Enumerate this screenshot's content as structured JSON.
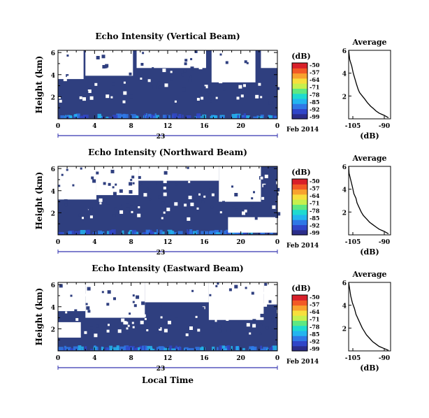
{
  "figure": {
    "date_label": "Feb 2014",
    "day_label": "23",
    "xlabel": "Local Time"
  },
  "colors": {
    "background_fill": "#2f3f7f",
    "colormap": [
      "#2b2d8a",
      "#3046c8",
      "#2f78e6",
      "#23b5ef",
      "#1fdad0",
      "#5ee882",
      "#c6f04e",
      "#f7df3c",
      "#f8a22e",
      "#f25a26",
      "#d8202a"
    ]
  },
  "chart_data": [
    {
      "type": "heatmap",
      "title": "Echo Intensity (Vertical Beam)",
      "ylabel": "Height (km)",
      "x_ticks": [
        "0",
        "4",
        "8",
        "12",
        "16",
        "20",
        "0"
      ],
      "y_ticks": [
        "2",
        "4",
        "6"
      ],
      "xlim": [
        0,
        24
      ],
      "ylim": [
        0,
        6.2
      ],
      "colorbar": {
        "label": "(dB)",
        "ticks": [
          "-50",
          "-57",
          "-64",
          "-71",
          "-78",
          "-85",
          "-92",
          "-99"
        ]
      },
      "white_patches": [
        {
          "x": [
            0,
            2.8
          ],
          "y": [
            3.6,
            6.2
          ]
        },
        {
          "x": [
            3,
            8.2
          ],
          "y": [
            3.9,
            6.2
          ]
        },
        {
          "x": [
            8.6,
            16.2
          ],
          "y": [
            4.6,
            6.2
          ]
        },
        {
          "x": [
            16.8,
            21.6
          ],
          "y": [
            3.3,
            6.2
          ]
        },
        {
          "x": [
            22.2,
            24
          ],
          "y": [
            4.6,
            6.2
          ]
        }
      ],
      "noise_density": 0.12,
      "average_profile": {
        "title": "Average",
        "xlabel": "(dB)",
        "x_ticks": [
          "-105",
          "-90"
        ],
        "y_ticks": [
          "2",
          "4",
          "6"
        ],
        "xlim": [
          -107,
          -87
        ],
        "ylim": [
          0,
          6
        ],
        "x": [
          -107,
          -106.5,
          -105.5,
          -104.8,
          -104,
          -103.2,
          -102.5,
          -101.8,
          -100.5,
          -99.2,
          -98,
          -96.5,
          -95.2,
          -94,
          -92.5,
          -90,
          -88
        ],
        "y": [
          6,
          5.2,
          4.6,
          4.0,
          3.5,
          3.0,
          2.6,
          2.3,
          2.0,
          1.7,
          1.4,
          1.1,
          0.9,
          0.7,
          0.5,
          0.3,
          0.1
        ]
      }
    },
    {
      "type": "heatmap",
      "title": "Echo Intensity (Northward Beam)",
      "ylabel": "Height (km)",
      "x_ticks": [
        "0",
        "4",
        "8",
        "12",
        "16",
        "20",
        "0"
      ],
      "y_ticks": [
        "2",
        "4",
        "6"
      ],
      "xlim": [
        0,
        24
      ],
      "ylim": [
        0,
        6.2
      ],
      "colorbar": {
        "label": "(dB)",
        "ticks": [
          "-50",
          "-57",
          "-64",
          "-71",
          "-78",
          "-85",
          "-92",
          "-99"
        ]
      },
      "white_patches": [
        {
          "x": [
            0,
            4.2
          ],
          "y": [
            3.2,
            6.2
          ]
        },
        {
          "x": [
            4.2,
            8.8
          ],
          "y": [
            3.6,
            6.2
          ]
        },
        {
          "x": [
            8.8,
            17.6
          ],
          "y": [
            4.9,
            6.2
          ]
        },
        {
          "x": [
            17.6,
            22.2
          ],
          "y": [
            3.0,
            6.2
          ]
        },
        {
          "x": [
            18.6,
            24
          ],
          "y": [
            0.2,
            1.6
          ]
        }
      ],
      "noise_density": 0.14,
      "average_profile": {
        "title": "Average",
        "xlabel": "(dB)",
        "x_ticks": [
          "-105",
          "-90"
        ],
        "y_ticks": [
          "2",
          "4",
          "6"
        ],
        "xlim": [
          -107,
          -87
        ],
        "ylim": [
          0,
          6
        ],
        "x": [
          -107,
          -106.8,
          -106,
          -105.2,
          -104.5,
          -103.5,
          -103,
          -102,
          -101,
          -100,
          -98.5,
          -97,
          -95.5,
          -94,
          -92.5,
          -90,
          -88
        ],
        "y": [
          6,
          5.4,
          4.8,
          4.2,
          3.6,
          3.2,
          2.8,
          2.4,
          2.0,
          1.7,
          1.4,
          1.1,
          0.9,
          0.7,
          0.5,
          0.3,
          0.1
        ]
      }
    },
    {
      "type": "heatmap",
      "title": "Echo Intensity (Eastward Beam)",
      "ylabel": "Height (km)",
      "x_ticks": [
        "0",
        "4",
        "8",
        "12",
        "16",
        "20",
        "0"
      ],
      "y_ticks": [
        "2",
        "4",
        "6"
      ],
      "xlim": [
        0,
        24
      ],
      "ylim": [
        0,
        6.2
      ],
      "colorbar": {
        "label": "(dB)",
        "ticks": [
          "-50",
          "-57",
          "-64",
          "-71",
          "-78",
          "-85",
          "-92",
          "-99"
        ]
      },
      "white_patches": [
        {
          "x": [
            0,
            3
          ],
          "y": [
            3.6,
            6.2
          ]
        },
        {
          "x": [
            3,
            9.5
          ],
          "y": [
            3.0,
            6.2
          ]
        },
        {
          "x": [
            9.5,
            16.5
          ],
          "y": [
            4.4,
            6.2
          ]
        },
        {
          "x": [
            16.5,
            22.5
          ],
          "y": [
            2.8,
            6.2
          ]
        },
        {
          "x": [
            22.5,
            24
          ],
          "y": [
            4.2,
            6.2
          ]
        },
        {
          "x": [
            0,
            2.5
          ],
          "y": [
            1.2,
            2.6
          ]
        }
      ],
      "noise_density": 0.13,
      "average_profile": {
        "title": "Average",
        "xlabel": "(dB)",
        "x_ticks": [
          "-105",
          "-90"
        ],
        "y_ticks": [
          "2",
          "4",
          "6"
        ],
        "xlim": [
          -107,
          -87
        ],
        "ylim": [
          0,
          6
        ],
        "x": [
          -107,
          -106.5,
          -106,
          -105.2,
          -104.2,
          -103.5,
          -102.5,
          -101.5,
          -100.5,
          -99.5,
          -98.5,
          -97,
          -95.5,
          -94,
          -92.5,
          -90,
          -88
        ],
        "y": [
          6,
          5.4,
          4.8,
          4.2,
          3.7,
          3.2,
          2.8,
          2.4,
          2.0,
          1.7,
          1.4,
          1.1,
          0.8,
          0.6,
          0.4,
          0.2,
          0.05
        ]
      }
    }
  ]
}
